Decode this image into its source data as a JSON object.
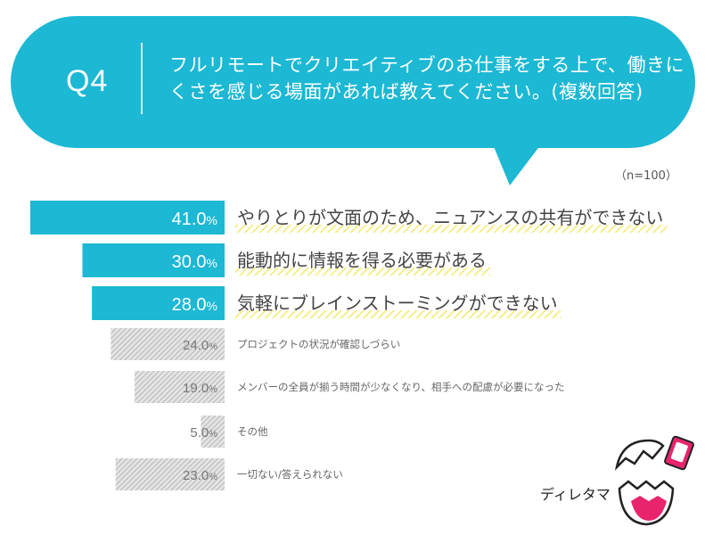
{
  "question": {
    "label": "Q4",
    "text": "フルリモートでクリエイティブのお仕事をする上で、働きにくさを感じる場面があれば教えてください。(複数回答)"
  },
  "sample_size": "（n=100）",
  "colors": {
    "bubble": "#1cb8d4",
    "bar_top": "#1cb8d4",
    "bar_other_stripe": "#b7b7b7",
    "highlight_underline": "#f3ea6a",
    "mascot_accent": "#e8246d"
  },
  "chart_data": {
    "type": "bar",
    "orientation": "horizontal",
    "direction": "right-to-left",
    "xlim": [
      0,
      50
    ],
    "categories": [
      "やりとりが文面のため、ニュアンスの共有ができない",
      "能動的に情報を得る必要がある",
      "気軽にブレインストーミングができない",
      "プロジェクトの状況が確認しづらい",
      "メンバーの全員が揃う時間が少なくなり、相手への配慮が必要になった",
      "その他",
      "一切ない/答えられない"
    ],
    "values": [
      41.0,
      30.0,
      28.0,
      24.0,
      19.0,
      5.0,
      23.0
    ],
    "value_labels": [
      "41.0",
      "30.0",
      "28.0",
      "24.0",
      "19.0",
      "5.0",
      "23.0"
    ],
    "unit": "%",
    "highlighted_count": 3
  },
  "mascot": {
    "signature": "ディレタマ"
  }
}
